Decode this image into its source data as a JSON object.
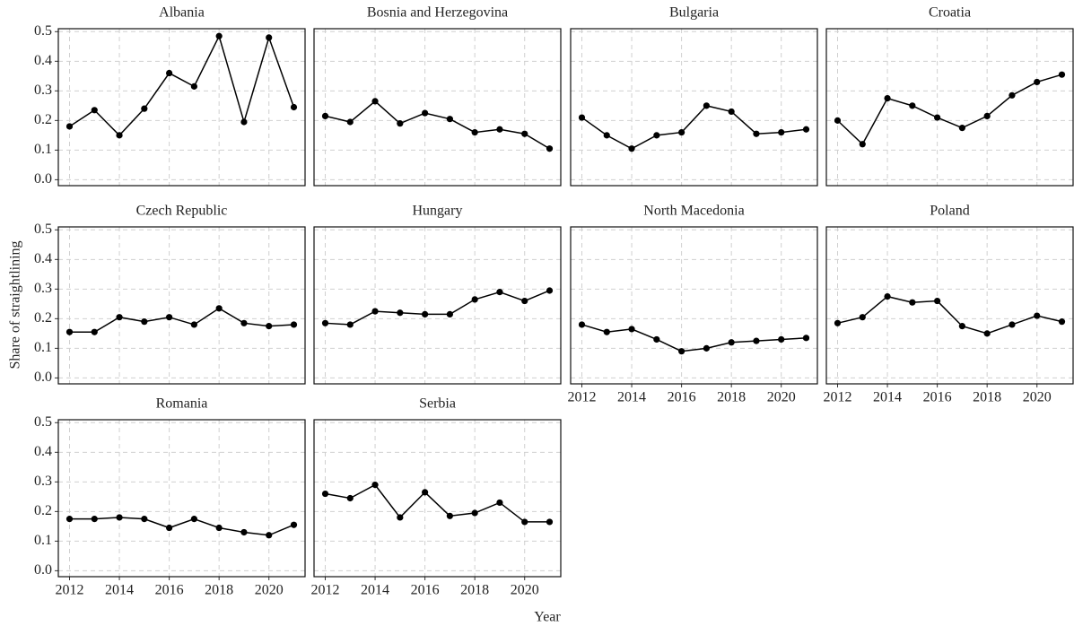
{
  "xlabel": "Year",
  "ylabel": "Share of straightlining",
  "chart_data": [
    {
      "type": "line",
      "title": "Albania",
      "x": [
        2012,
        2013,
        2014,
        2015,
        2016,
        2017,
        2018,
        2019,
        2020,
        2021
      ],
      "values": [
        0.18,
        0.235,
        0.15,
        0.24,
        0.36,
        0.315,
        0.485,
        0.195,
        0.48,
        0.245
      ],
      "color": "#000000",
      "xlim": [
        2011.55,
        2021.45
      ],
      "xticks": [
        2012,
        2014,
        2016,
        2018,
        2020
      ],
      "ylim": [
        -0.02,
        0.51
      ],
      "yticks": [
        {
          "value": 0,
          "label": "0.0"
        },
        0.1,
        0.2,
        0.3,
        0.4,
        0.5
      ],
      "grid": true
    },
    {
      "type": "line",
      "title": "Bosnia and Herzegovina",
      "x": [
        2012,
        2013,
        2014,
        2015,
        2016,
        2017,
        2018,
        2019,
        2020,
        2021
      ],
      "values": [
        0.215,
        0.195,
        0.265,
        0.19,
        0.225,
        0.205,
        0.16,
        0.17,
        0.155,
        0.105
      ],
      "color": "#000000",
      "xlim": [
        2011.55,
        2021.45
      ],
      "xticks": [
        2012,
        2014,
        2016,
        2018,
        2020
      ],
      "ylim": [
        -0.02,
        0.51
      ],
      "yticks": [
        {
          "value": 0,
          "label": "0.0"
        },
        0.1,
        0.2,
        0.3,
        0.4,
        0.5
      ],
      "grid": true
    },
    {
      "type": "line",
      "title": "Bulgaria",
      "x": [
        2012,
        2013,
        2014,
        2015,
        2016,
        2017,
        2018,
        2019,
        2020,
        2021
      ],
      "values": [
        0.21,
        0.15,
        0.105,
        0.15,
        0.16,
        0.25,
        0.23,
        0.155,
        0.16,
        0.17
      ],
      "color": "#000000",
      "xlim": [
        2011.55,
        2021.45
      ],
      "xticks": [
        2012,
        2014,
        2016,
        2018,
        2020
      ],
      "ylim": [
        -0.02,
        0.51
      ],
      "yticks": [
        {
          "value": 0,
          "label": "0.0"
        },
        0.1,
        0.2,
        0.3,
        0.4,
        0.5
      ],
      "grid": true
    },
    {
      "type": "line",
      "title": "Croatia",
      "x": [
        2012,
        2013,
        2014,
        2015,
        2016,
        2017,
        2018,
        2019,
        2020,
        2021
      ],
      "values": [
        0.2,
        0.12,
        0.275,
        0.25,
        0.21,
        0.175,
        0.215,
        0.285,
        0.33,
        0.355
      ],
      "color": "#000000",
      "xlim": [
        2011.55,
        2021.45
      ],
      "xticks": [
        2012,
        2014,
        2016,
        2018,
        2020
      ],
      "ylim": [
        -0.02,
        0.51
      ],
      "yticks": [
        {
          "value": 0,
          "label": "0.0"
        },
        0.1,
        0.2,
        0.3,
        0.4,
        0.5
      ],
      "grid": true
    },
    {
      "type": "line",
      "title": "Czech Republic",
      "x": [
        2012,
        2013,
        2014,
        2015,
        2016,
        2017,
        2018,
        2019,
        2020,
        2021
      ],
      "values": [
        0.155,
        0.155,
        0.205,
        0.19,
        0.205,
        0.18,
        0.235,
        0.185,
        0.175,
        0.18
      ],
      "color": "#000000",
      "xlim": [
        2011.55,
        2021.45
      ],
      "xticks": [
        2012,
        2014,
        2016,
        2018,
        2020
      ],
      "ylim": [
        -0.02,
        0.51
      ],
      "yticks": [
        {
          "value": 0,
          "label": "0.0"
        },
        0.1,
        0.2,
        0.3,
        0.4,
        0.5
      ],
      "grid": true
    },
    {
      "type": "line",
      "title": "Hungary",
      "x": [
        2012,
        2013,
        2014,
        2015,
        2016,
        2017,
        2018,
        2019,
        2020,
        2021
      ],
      "values": [
        0.185,
        0.18,
        0.225,
        0.22,
        0.215,
        0.215,
        0.265,
        0.29,
        0.26,
        0.295
      ],
      "color": "#000000",
      "xlim": [
        2011.55,
        2021.45
      ],
      "xticks": [
        2012,
        2014,
        2016,
        2018,
        2020
      ],
      "ylim": [
        -0.02,
        0.51
      ],
      "yticks": [
        {
          "value": 0,
          "label": "0.0"
        },
        0.1,
        0.2,
        0.3,
        0.4,
        0.5
      ],
      "grid": true
    },
    {
      "type": "line",
      "title": "North Macedonia",
      "x": [
        2012,
        2013,
        2014,
        2015,
        2016,
        2017,
        2018,
        2019,
        2020,
        2021
      ],
      "values": [
        0.18,
        0.155,
        0.165,
        0.13,
        0.09,
        0.1,
        0.12,
        0.125,
        0.13,
        0.135
      ],
      "color": "#000000",
      "xlim": [
        2011.55,
        2021.45
      ],
      "xticks": [
        2012,
        2014,
        2016,
        2018,
        2020
      ],
      "ylim": [
        -0.02,
        0.51
      ],
      "yticks": [
        {
          "value": 0,
          "label": "0.0"
        },
        0.1,
        0.2,
        0.3,
        0.4,
        0.5
      ],
      "grid": true
    },
    {
      "type": "line",
      "title": "Poland",
      "x": [
        2012,
        2013,
        2014,
        2015,
        2016,
        2017,
        2018,
        2019,
        2020,
        2021
      ],
      "values": [
        0.185,
        0.205,
        0.275,
        0.255,
        0.26,
        0.175,
        0.15,
        0.18,
        0.21,
        0.19
      ],
      "color": "#000000",
      "xlim": [
        2011.55,
        2021.45
      ],
      "xticks": [
        2012,
        2014,
        2016,
        2018,
        2020
      ],
      "ylim": [
        -0.02,
        0.51
      ],
      "yticks": [
        {
          "value": 0,
          "label": "0.0"
        },
        0.1,
        0.2,
        0.3,
        0.4,
        0.5
      ],
      "grid": true
    },
    {
      "type": "line",
      "title": "Romania",
      "x": [
        2012,
        2013,
        2014,
        2015,
        2016,
        2017,
        2018,
        2019,
        2020,
        2021
      ],
      "values": [
        0.175,
        0.175,
        0.18,
        0.175,
        0.145,
        0.175,
        0.145,
        0.13,
        0.12,
        0.155
      ],
      "color": "#000000",
      "xlim": [
        2011.55,
        2021.45
      ],
      "xticks": [
        2012,
        2014,
        2016,
        2018,
        2020
      ],
      "ylim": [
        -0.02,
        0.51
      ],
      "yticks": [
        {
          "value": 0,
          "label": "0.0"
        },
        0.1,
        0.2,
        0.3,
        0.4,
        0.5
      ],
      "grid": true
    },
    {
      "type": "line",
      "title": "Serbia",
      "x": [
        2012,
        2013,
        2014,
        2015,
        2016,
        2017,
        2018,
        2019,
        2020,
        2021
      ],
      "values": [
        0.26,
        0.245,
        0.29,
        0.18,
        0.265,
        0.185,
        0.195,
        0.23,
        0.165,
        0.165
      ],
      "color": "#000000",
      "xlim": [
        2011.55,
        2021.45
      ],
      "xticks": [
        2012,
        2014,
        2016,
        2018,
        2020
      ],
      "ylim": [
        -0.02,
        0.51
      ],
      "yticks": [
        {
          "value": 0,
          "label": "0.0"
        },
        0.1,
        0.2,
        0.3,
        0.4,
        0.5
      ],
      "grid": true
    }
  ]
}
